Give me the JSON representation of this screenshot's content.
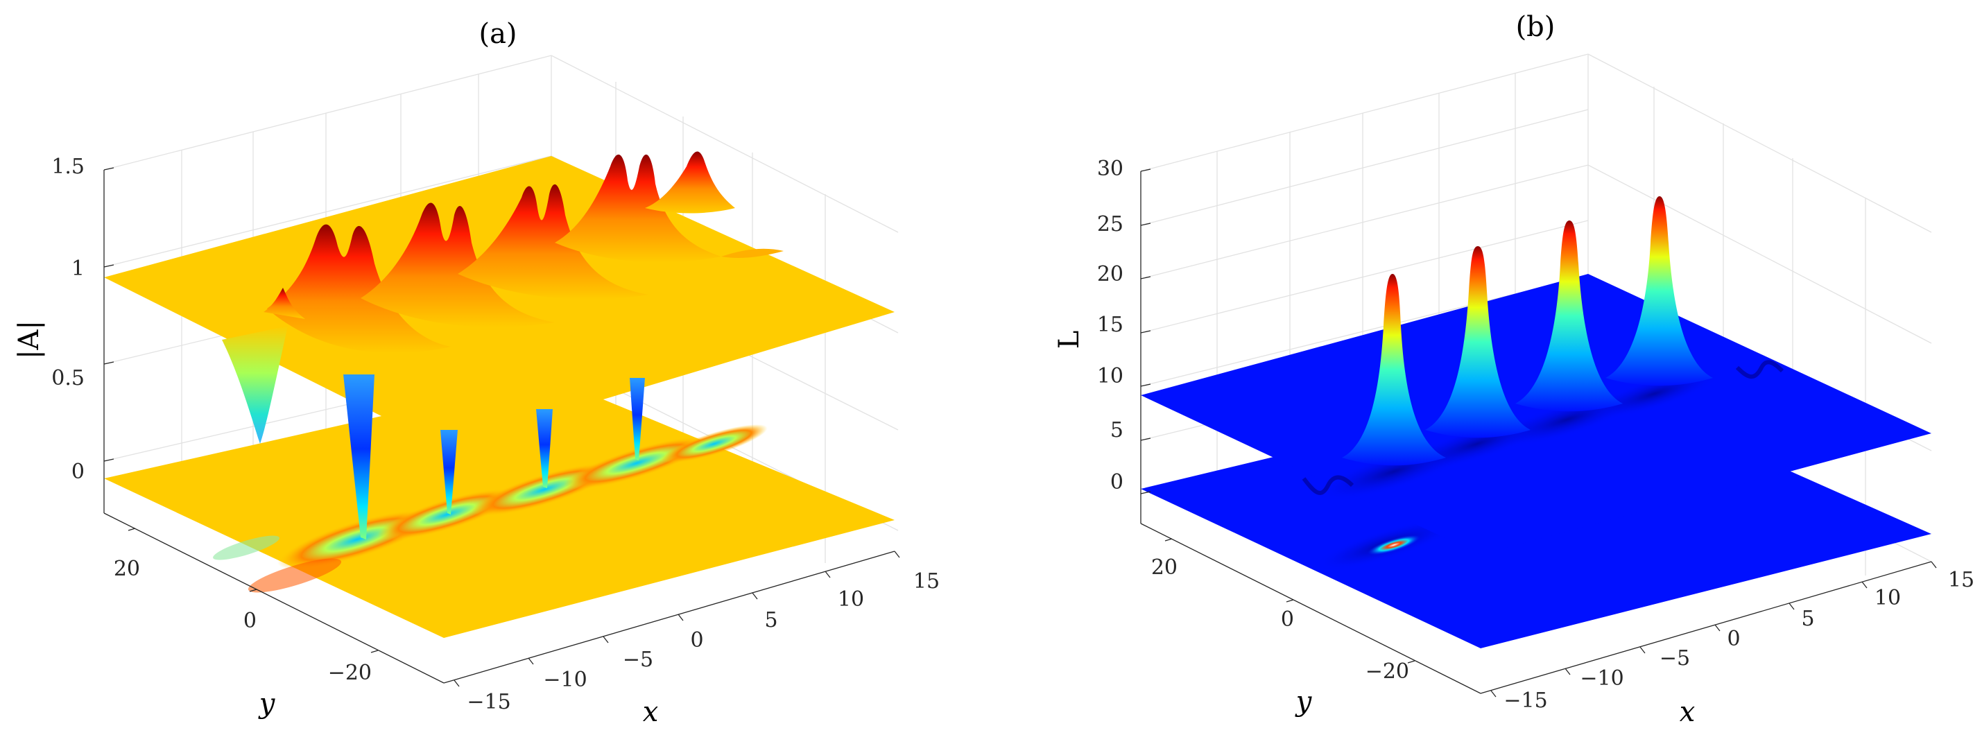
{
  "chart_data": [
    {
      "type": "surface",
      "panel_label": "(a)",
      "zlabel": "|A|",
      "xlabel": "x",
      "ylabel": "y",
      "xlim": [
        -15,
        15
      ],
      "ylim": [
        -30,
        30
      ],
      "zlim": [
        -0.3,
        1.5
      ],
      "z_ticks": [
        "0",
        "0.5",
        "1",
        "1.5"
      ],
      "x_ticks": [
        "−15",
        "−10",
        "−5",
        "0",
        "5",
        "10",
        "15"
      ],
      "y_ticks": [
        "−20",
        "0",
        "20"
      ],
      "grid": true,
      "colormap": "jet",
      "colors": {
        "plane_upper": "#ffcc00",
        "plane_lower": "#ffcc00",
        "peak": "#8b0000",
        "dip": "#0000ff"
      },
      "surfaces": [
        {
          "name": "upper",
          "baseline": 1.0,
          "peak_pairs": [
            {
              "x": -10,
              "peaks": [
                1.25,
                1.25
              ]
            },
            {
              "x": -3,
              "peaks": [
                1.3,
                1.3
              ]
            },
            {
              "x": 4,
              "peaks": [
                1.35,
                1.35
              ]
            },
            {
              "x": 11,
              "peaks": [
                1.45,
                1.45
              ]
            }
          ],
          "dip": {
            "x": -14,
            "value": 0.22
          }
        },
        {
          "name": "lower",
          "baseline": 0.0,
          "spikes": [
            {
              "x": -10,
              "value": 0.95
            },
            {
              "x": -3,
              "value": 0.35
            },
            {
              "x": 4,
              "value": 0.6
            },
            {
              "x": 11,
              "value": 0.85
            }
          ]
        }
      ]
    },
    {
      "type": "surface",
      "panel_label": "(b)",
      "zlabel": "L",
      "xlabel": "x",
      "ylabel": "y",
      "xlim": [
        -15,
        15
      ],
      "ylim": [
        -30,
        30
      ],
      "zlim": [
        -3,
        30
      ],
      "z_ticks": [
        "0",
        "5",
        "10",
        "15",
        "20",
        "25",
        "30"
      ],
      "x_ticks": [
        "−15",
        "−10",
        "−5",
        "0",
        "5",
        "10",
        "15"
      ],
      "y_ticks": [
        "−20",
        "0",
        "20"
      ],
      "grid": true,
      "colormap": "jet",
      "colors": {
        "plane_upper": "#0010ff",
        "plane_lower": "#0010ff",
        "peak": "#8b0000"
      },
      "surfaces": [
        {
          "name": "upper",
          "baseline": 10.0,
          "peaks": [
            {
              "x": -10,
              "value": 20.5
            },
            {
              "x": -3,
              "value": 22.5
            },
            {
              "x": 4,
              "value": 24.5
            },
            {
              "x": 11,
              "value": 26.5
            }
          ]
        },
        {
          "name": "lower",
          "baseline": 0.0,
          "hotspot": {
            "x": -10,
            "value": 3
          }
        }
      ]
    }
  ]
}
